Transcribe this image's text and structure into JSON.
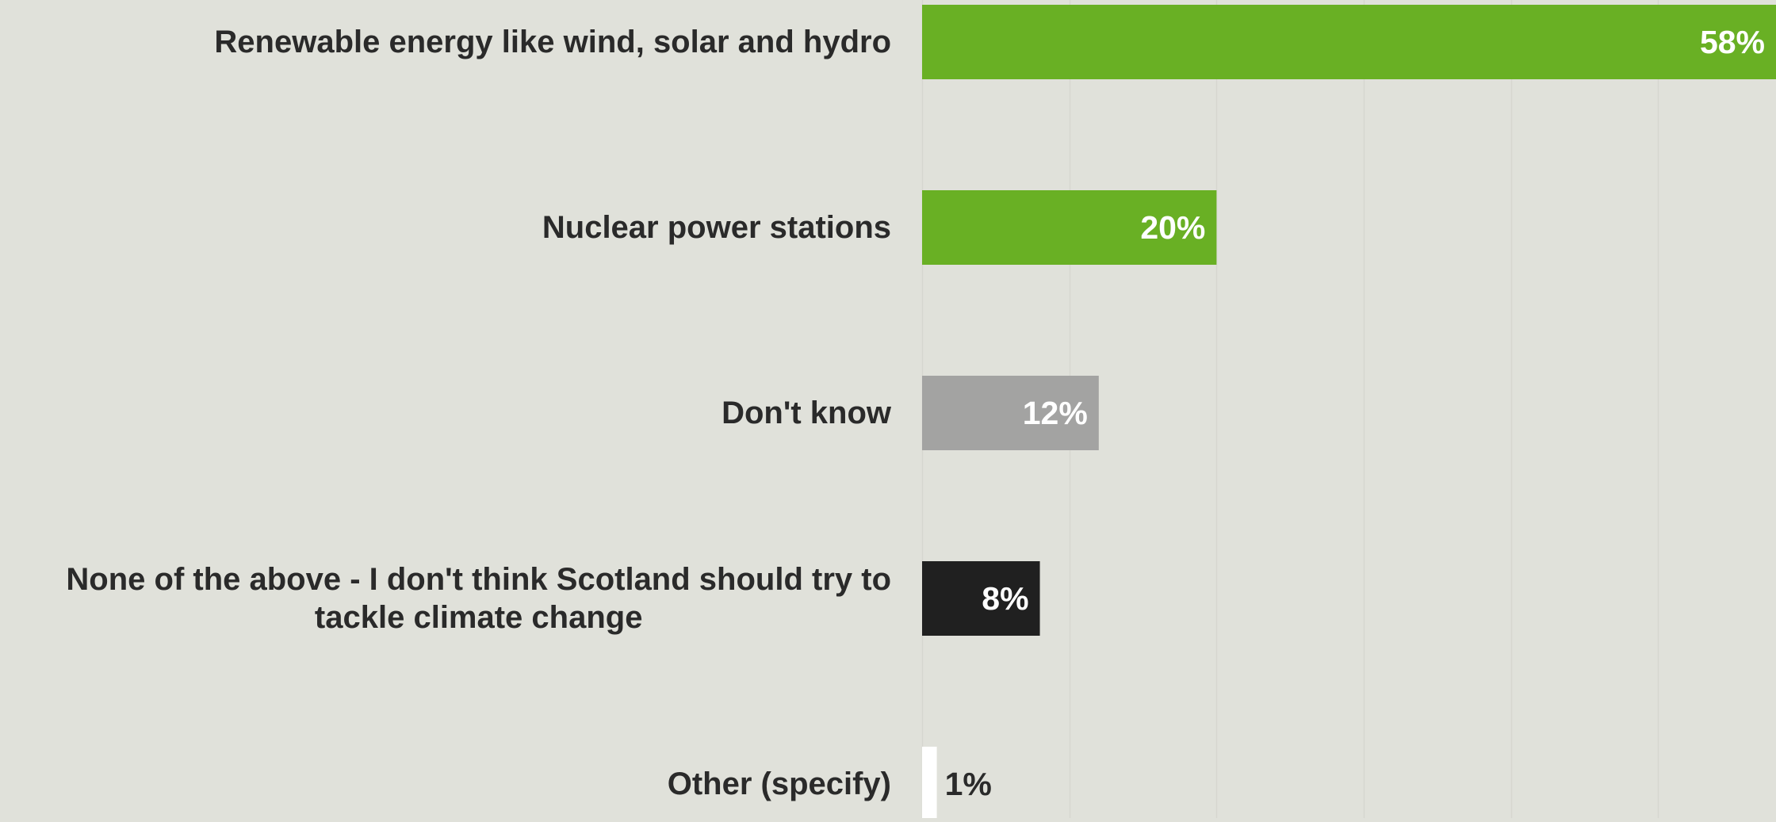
{
  "chart_data": {
    "type": "bar",
    "orientation": "horizontal",
    "categories": [
      "Renewable energy like wind, solar and hydro",
      "Nuclear power stations",
      "Don't know",
      "None of the above - I don't think Scotland should try to tackle climate change",
      "Other (specify)"
    ],
    "values": [
      58,
      20,
      12,
      8,
      1
    ],
    "value_labels": [
      "58%",
      "20%",
      "12%",
      "8%",
      "1%"
    ],
    "bar_colors": [
      "#69b024",
      "#69b024",
      "#a3a3a2",
      "#202020",
      "#ffffff"
    ],
    "title": "",
    "xlabel": "",
    "ylabel": "",
    "xlim": [
      0,
      58
    ],
    "grid": true,
    "legend": "none"
  }
}
